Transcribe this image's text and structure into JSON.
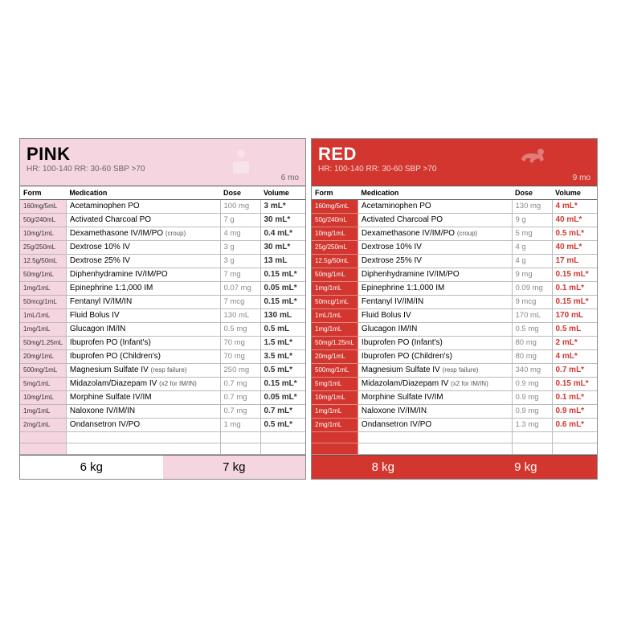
{
  "colors": {
    "pink_bg": "#f4d5e0",
    "red_bg": "#d2362f",
    "grey_text": "#888888",
    "border": "#bbbbbb"
  },
  "columns": {
    "form": "Form",
    "medication": "Medication",
    "dose": "Dose",
    "volume": "Volume"
  },
  "panels": [
    {
      "key": "pink",
      "title": "PINK",
      "vitals": "HR: 100-140   RR: 30-60   SBP >70",
      "age": "6 mo",
      "footer": [
        "6 kg",
        "7 kg"
      ],
      "rows": [
        {
          "form": "160mg/5mL",
          "med": "Acetaminophen PO",
          "sub": "",
          "dose": "100 mg",
          "vol": "3 mL*"
        },
        {
          "form": "50g/240mL",
          "med": "Activated Charcoal PO",
          "sub": "",
          "dose": "7 g",
          "vol": "30 mL*"
        },
        {
          "form": "10mg/1mL",
          "med": "Dexamethasone IV/IM/PO",
          "sub": "(croup)",
          "dose": "4 mg",
          "vol": "0.4 mL*"
        },
        {
          "form": "25g/250mL",
          "med": "Dextrose 10% IV",
          "sub": "",
          "dose": "3 g",
          "vol": "30 mL*"
        },
        {
          "form": "12.5g/50mL",
          "med": "Dextrose 25% IV",
          "sub": "",
          "dose": "3 g",
          "vol": "13 mL"
        },
        {
          "form": "50mg/1mL",
          "med": "Diphenhydramine IV/IM/PO",
          "sub": "",
          "dose": "7 mg",
          "vol": "0.15 mL*"
        },
        {
          "form": "1mg/1mL",
          "med": "Epinephrine 1:1,000 IM",
          "sub": "",
          "dose": "0.07 mg",
          "vol": "0.05 mL*"
        },
        {
          "form": "50mcg/1mL",
          "med": "Fentanyl IV/IM/IN",
          "sub": "",
          "dose": "7 mcg",
          "vol": "0.15 mL*"
        },
        {
          "form": "1mL/1mL",
          "med": "Fluid Bolus IV",
          "sub": "",
          "dose": "130 mL",
          "vol": "130 mL"
        },
        {
          "form": "1mg/1mL",
          "med": "Glucagon IM/IN",
          "sub": "",
          "dose": "0.5 mg",
          "vol": "0.5 mL"
        },
        {
          "form": "50mg/1.25mL",
          "med": "Ibuprofen PO (Infant's)",
          "sub": "",
          "dose": "70 mg",
          "vol": "1.5 mL*"
        },
        {
          "form": "20mg/1mL",
          "med": "Ibuprofen PO (Children's)",
          "sub": "",
          "dose": "70 mg",
          "vol": "3.5 mL*"
        },
        {
          "form": "500mg/1mL",
          "med": "Magnesium Sulfate IV",
          "sub": "(resp failure)",
          "dose": "250 mg",
          "vol": "0.5 mL*"
        },
        {
          "form": "5mg/1mL",
          "med": "Midazolam/Diazepam IV",
          "sub": "(x2 for IM/IN)",
          "dose": "0.7 mg",
          "vol": "0.15 mL*"
        },
        {
          "form": "10mg/1mL",
          "med": "Morphine Sulfate IV/IM",
          "sub": "",
          "dose": "0.7 mg",
          "vol": "0.05 mL*"
        },
        {
          "form": "1mg/1mL",
          "med": "Naloxone IV/IM/IN",
          "sub": "",
          "dose": "0.7 mg",
          "vol": "0.7 mL*"
        },
        {
          "form": "2mg/1mL",
          "med": "Ondansetron IV/PO",
          "sub": "",
          "dose": "1 mg",
          "vol": "0.5 mL*"
        }
      ]
    },
    {
      "key": "red",
      "title": "RED",
      "vitals": "HR: 100-140   RR: 30-60   SBP >70",
      "age": "9 mo",
      "footer": [
        "8 kg",
        "9 kg"
      ],
      "rows": [
        {
          "form": "160mg/5mL",
          "med": "Acetaminophen PO",
          "sub": "",
          "dose": "130 mg",
          "vol": "4 mL*"
        },
        {
          "form": "50g/240mL",
          "med": "Activated Charcoal PO",
          "sub": "",
          "dose": "9 g",
          "vol": "40 mL*"
        },
        {
          "form": "10mg/1mL",
          "med": "Dexamethasone IV/IM/PO",
          "sub": "(croup)",
          "dose": "5 mg",
          "vol": "0.5 mL*"
        },
        {
          "form": "25g/250mL",
          "med": "Dextrose 10% IV",
          "sub": "",
          "dose": "4 g",
          "vol": "40 mL*"
        },
        {
          "form": "12.5g/50mL",
          "med": "Dextrose 25% IV",
          "sub": "",
          "dose": "4 g",
          "vol": "17 mL"
        },
        {
          "form": "50mg/1mL",
          "med": "Diphenhydramine IV/IM/PO",
          "sub": "",
          "dose": "9 mg",
          "vol": "0.15 mL*"
        },
        {
          "form": "1mg/1mL",
          "med": "Epinephrine 1:1,000 IM",
          "sub": "",
          "dose": "0.09 mg",
          "vol": "0.1 mL*"
        },
        {
          "form": "50mcg/1mL",
          "med": "Fentanyl IV/IM/IN",
          "sub": "",
          "dose": "9 mcg",
          "vol": "0.15 mL*"
        },
        {
          "form": "1mL/1mL",
          "med": "Fluid Bolus IV",
          "sub": "",
          "dose": "170 mL",
          "vol": "170 mL"
        },
        {
          "form": "1mg/1mL",
          "med": "Glucagon IM/IN",
          "sub": "",
          "dose": "0.5 mg",
          "vol": "0.5 mL"
        },
        {
          "form": "50mg/1.25mL",
          "med": "Ibuprofen PO (Infant's)",
          "sub": "",
          "dose": "80 mg",
          "vol": "2 mL*"
        },
        {
          "form": "20mg/1mL",
          "med": "Ibuprofen PO (Children's)",
          "sub": "",
          "dose": "80 mg",
          "vol": "4 mL*"
        },
        {
          "form": "500mg/1mL",
          "med": "Magnesium Sulfate IV",
          "sub": "(resp failure)",
          "dose": "340 mg",
          "vol": "0.7 mL*"
        },
        {
          "form": "5mg/1mL",
          "med": "Midazolam/Diazepam IV",
          "sub": "(x2 for IM/IN)",
          "dose": "0.9 mg",
          "vol": "0.15 mL*"
        },
        {
          "form": "10mg/1mL",
          "med": "Morphine Sulfate IV/IM",
          "sub": "",
          "dose": "0.9 mg",
          "vol": "0.1 mL*"
        },
        {
          "form": "1mg/1mL",
          "med": "Naloxone IV/IM/IN",
          "sub": "",
          "dose": "0.9 mg",
          "vol": "0.9 mL*"
        },
        {
          "form": "2mg/1mL",
          "med": "Ondansetron IV/PO",
          "sub": "",
          "dose": "1.3 mg",
          "vol": "0.6 mL*"
        }
      ]
    }
  ]
}
